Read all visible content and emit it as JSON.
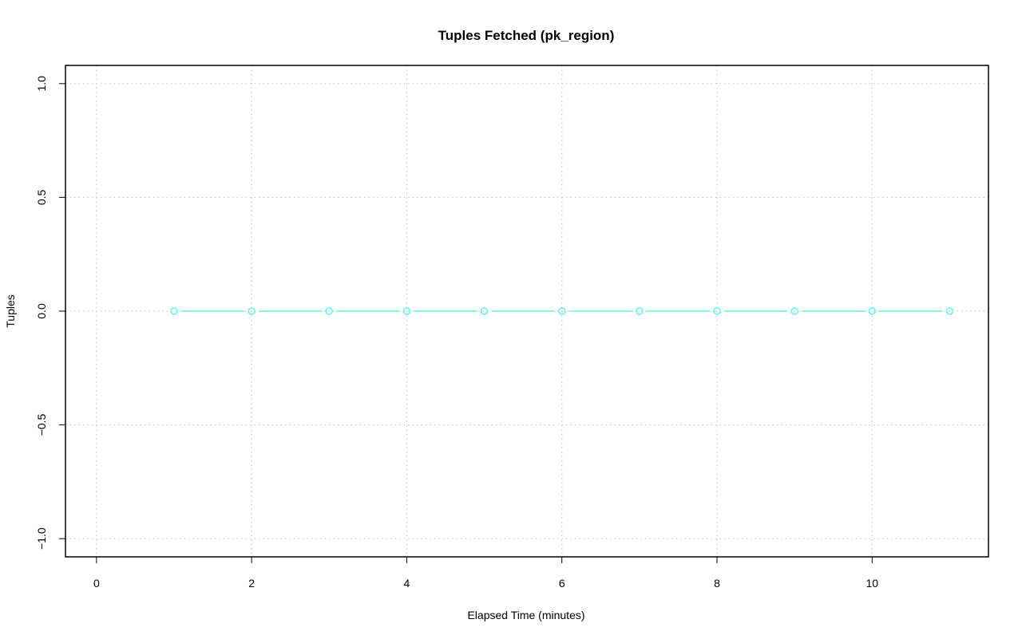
{
  "chart_data": {
    "type": "line",
    "title": "Tuples Fetched (pk_region)",
    "xlabel": "Elapsed Time (minutes)",
    "ylabel": "Tuples",
    "xlim": [
      -0.4,
      11.5
    ],
    "ylim": [
      -1.08,
      1.08
    ],
    "xticks": [
      0,
      2,
      4,
      6,
      8,
      10
    ],
    "xtick_labels": [
      "0",
      "2",
      "4",
      "6",
      "8",
      "10"
    ],
    "yticks": [
      -1.0,
      -0.5,
      0.0,
      0.5,
      1.0
    ],
    "ytick_labels": [
      "−1.0",
      "−0.5",
      "0.0",
      "0.5",
      "1.0"
    ],
    "grid": true,
    "series": [
      {
        "color": "#5ff5f5",
        "marker": "open-circle",
        "x": [
          1,
          2,
          3,
          4,
          5,
          6,
          7,
          8,
          9,
          10,
          11
        ],
        "y": [
          0,
          0,
          0,
          0,
          0,
          0,
          0,
          0,
          0,
          0,
          0
        ]
      }
    ]
  }
}
